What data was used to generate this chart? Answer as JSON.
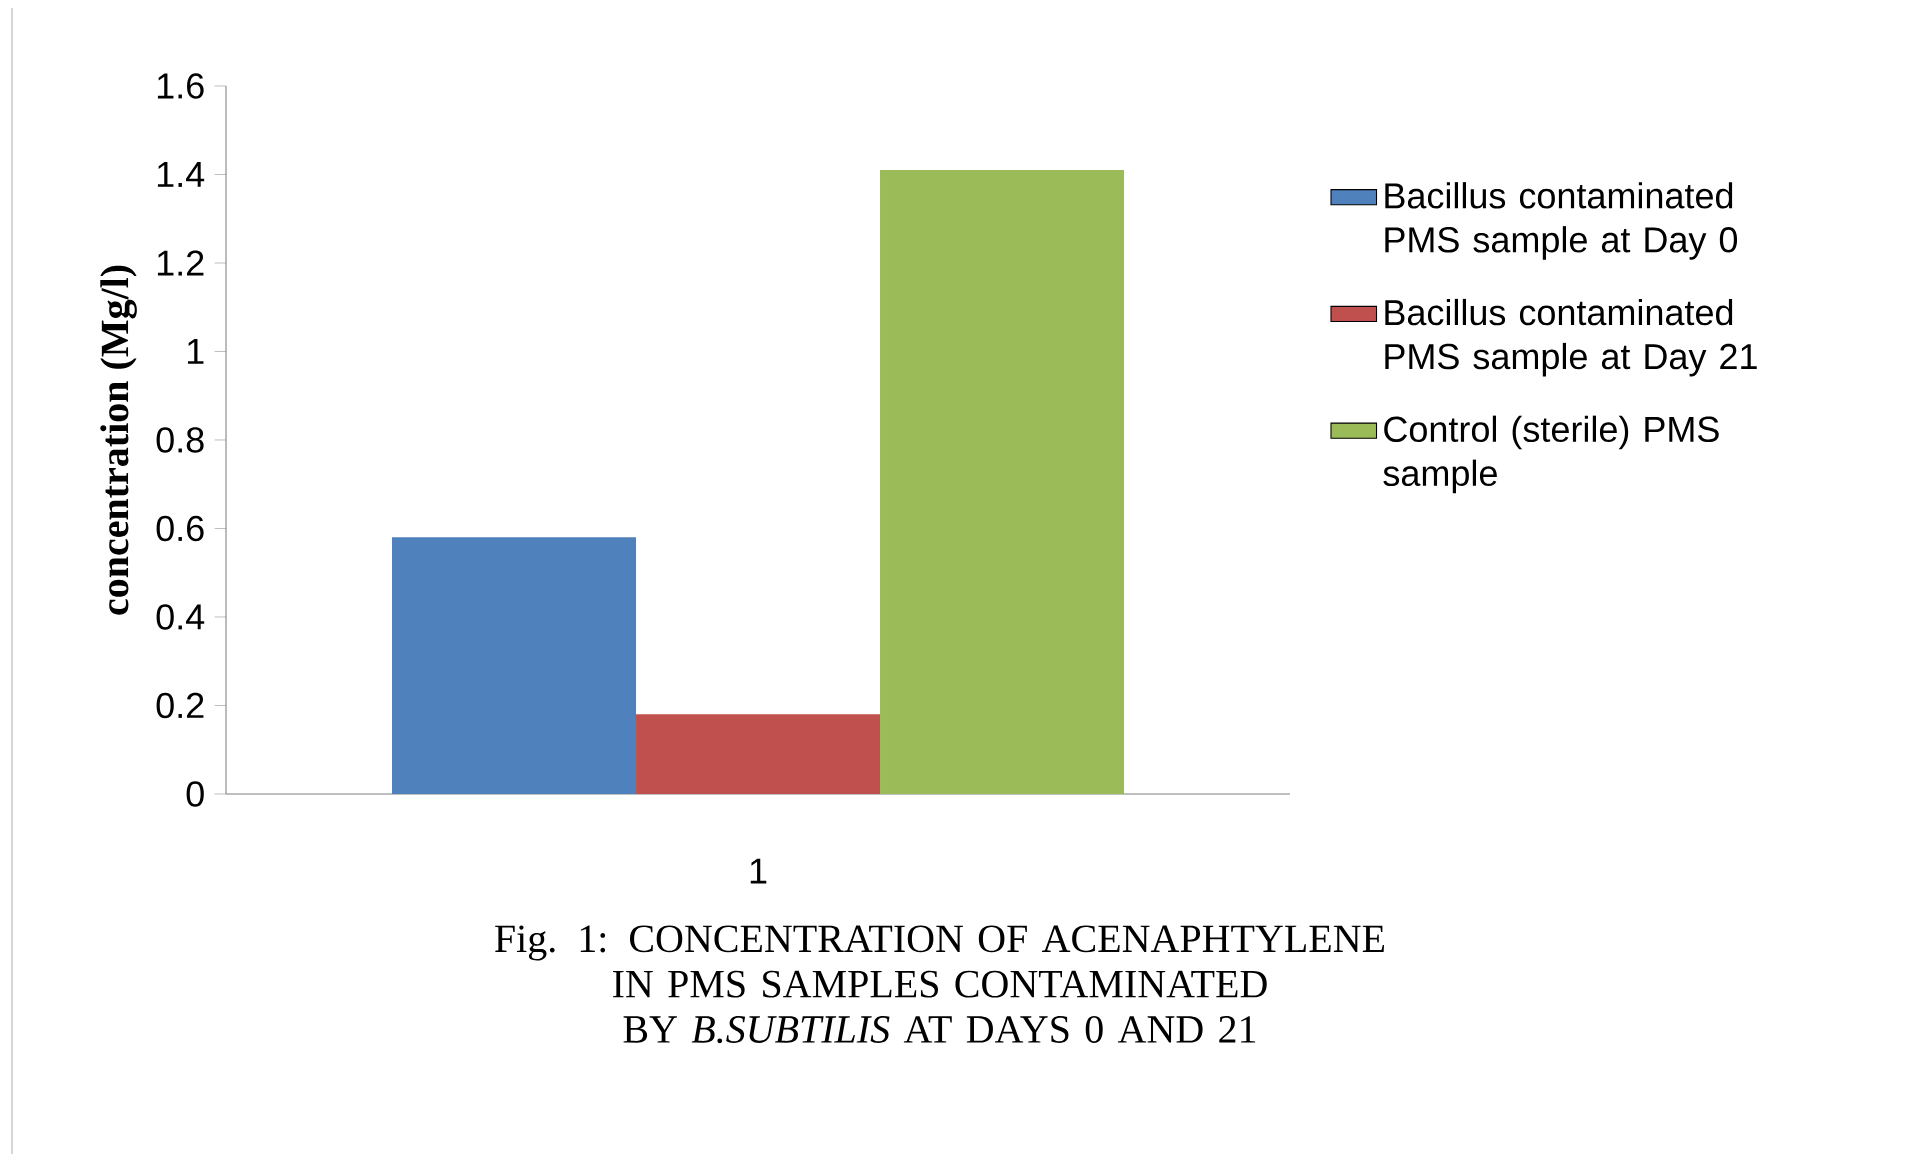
{
  "chart_data": {
    "type": "bar",
    "categories": [
      "1"
    ],
    "series": [
      {
        "name": "Bacillus contaminated PMS sample at Day 0",
        "color": "#4f81bd",
        "values": [
          0.58
        ]
      },
      {
        "name": "Bacillus contaminated PMS sample at Day 21",
        "color": "#c0504d",
        "values": [
          0.18
        ]
      },
      {
        "name": "Control (sterile) PMS sample",
        "color": "#9bbb59",
        "values": [
          1.41
        ]
      }
    ],
    "ylim": [
      0,
      1.6
    ],
    "yticks": [
      0,
      0.2,
      0.4,
      0.6,
      0.8,
      1,
      1.2,
      1.4,
      1.6
    ],
    "ylabel": "concentration (Mg/l)",
    "legend": "right",
    "annotations": [
      "Fig. 1: CONCENTRATION OF ACENAPHTYLENE IN PMS SAMPLES CONTAMINATED BY *B.SUBTILIS* AT DAYS 0 AND 21"
    ]
  }
}
